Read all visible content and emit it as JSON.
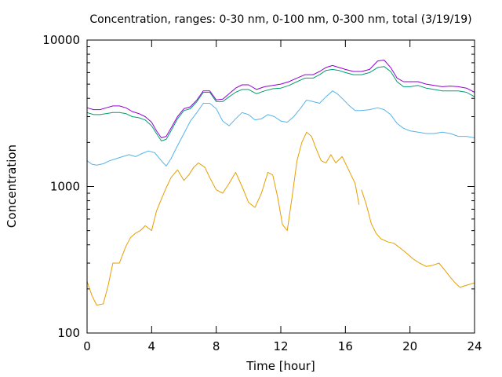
{
  "chart_data": {
    "type": "line",
    "title": "Concentration, ranges: 0-30 nm, 0-100 nm, 0-300 nm, total (3/19/19)",
    "xlabel": "Time [hour]",
    "ylabel": "Concentration",
    "xlim": [
      0,
      24
    ],
    "ylim": [
      100,
      10000
    ],
    "yscale": "log",
    "grid": false,
    "legend": "none",
    "x_ticks": [
      0,
      4,
      8,
      12,
      16,
      20,
      24
    ],
    "x_tick_labels": [
      "0",
      "4",
      "8",
      "12",
      "16",
      "20",
      "24"
    ],
    "y_ticks": [
      100,
      1000,
      10000
    ],
    "y_tick_labels": [
      "100",
      "1000",
      "10000"
    ],
    "series": [
      {
        "color": "#e69f00",
        "x": [
          0,
          0.3,
          0.6,
          1.0,
          1.3,
          1.6,
          2.0,
          2.4,
          2.7,
          3.0,
          3.3,
          3.6,
          4.0,
          4.3,
          4.6,
          4.9,
          5.2,
          5.6,
          6.0,
          6.3,
          6.6,
          6.9,
          7.3,
          7.6,
          8.0,
          8.4,
          8.8,
          9.2,
          9.6,
          10.0,
          10.4,
          10.8,
          11.2,
          11.5,
          11.8,
          12.1,
          12.4,
          12.7,
          13.0,
          13.3,
          13.6,
          13.9,
          14.2,
          14.5,
          14.8,
          15.1,
          15.4,
          15.8,
          16.2,
          16.6,
          16.85
        ],
        "values": [
          225,
          180,
          155,
          158,
          210,
          300,
          300,
          390,
          450,
          480,
          500,
          540,
          500,
          680,
          820,
          980,
          1150,
          1300,
          1100,
          1200,
          1350,
          1450,
          1350,
          1150,
          950,
          900,
          1050,
          1250,
          1000,
          780,
          720,
          900,
          1250,
          1200,
          850,
          550,
          500,
          850,
          1500,
          2000,
          2350,
          2200,
          1800,
          1500,
          1450,
          1650,
          1450,
          1600,
          1300,
          1050,
          750
        ]
      },
      {
        "color": "#e69f00",
        "x": [
          17.0,
          17.3,
          17.6,
          17.9,
          18.2,
          18.6,
          19.0,
          19.4,
          19.8,
          20.2,
          20.6,
          21.0,
          21.4,
          21.8,
          22.2,
          22.5,
          22.8,
          23.1,
          23.4,
          23.7,
          24.0
        ],
        "values": [
          950,
          750,
          560,
          480,
          440,
          420,
          410,
          380,
          350,
          320,
          300,
          285,
          290,
          300,
          265,
          240,
          220,
          205,
          210,
          215,
          220
        ]
      },
      {
        "color": "#56b4e9",
        "x": [
          0,
          0.3,
          0.6,
          1.0,
          1.4,
          1.8,
          2.2,
          2.6,
          3.0,
          3.4,
          3.8,
          4.2,
          4.6,
          4.9,
          5.2,
          5.6,
          6.0,
          6.4,
          6.8,
          7.2,
          7.6,
          8.0,
          8.4,
          8.8,
          9.2,
          9.6,
          10.0,
          10.4,
          10.8,
          11.2,
          11.6,
          12.0,
          12.4,
          12.8,
          13.2,
          13.6,
          14.0,
          14.4,
          14.8,
          15.2,
          15.5,
          15.8,
          16.2,
          16.6,
          17.0,
          17.5,
          18.0,
          18.4,
          18.8,
          19.2,
          19.6,
          20.0,
          20.5,
          21.0,
          21.5,
          22.0,
          22.5,
          23.0,
          23.5,
          24.0
        ],
        "values": [
          1500,
          1420,
          1400,
          1430,
          1500,
          1550,
          1600,
          1650,
          1600,
          1680,
          1750,
          1700,
          1500,
          1380,
          1550,
          1900,
          2300,
          2800,
          3200,
          3700,
          3700,
          3400,
          2800,
          2600,
          2900,
          3200,
          3100,
          2850,
          2900,
          3100,
          3000,
          2800,
          2750,
          3000,
          3400,
          3900,
          3800,
          3700,
          4100,
          4500,
          4300,
          4000,
          3600,
          3300,
          3300,
          3350,
          3450,
          3350,
          3100,
          2700,
          2500,
          2400,
          2350,
          2300,
          2300,
          2350,
          2300,
          2200,
          2200,
          2150
        ]
      },
      {
        "color": "#009e73",
        "x": [
          0,
          0.4,
          0.8,
          1.2,
          1.6,
          2.0,
          2.4,
          2.8,
          3.2,
          3.6,
          4.0,
          4.3,
          4.6,
          4.9,
          5.2,
          5.6,
          6.0,
          6.4,
          6.8,
          7.2,
          7.6,
          8.0,
          8.4,
          8.8,
          9.2,
          9.6,
          10.0,
          10.5,
          11.0,
          11.5,
          12.0,
          12.5,
          13.0,
          13.5,
          14.0,
          14.4,
          14.8,
          15.2,
          15.6,
          16.0,
          16.5,
          17.0,
          17.5,
          18.0,
          18.4,
          18.8,
          19.2,
          19.6,
          20.0,
          20.5,
          21.0,
          21.5,
          22.0,
          22.5,
          23.0,
          23.5,
          24.0
        ],
        "values": [
          3200,
          3100,
          3100,
          3150,
          3200,
          3200,
          3150,
          3000,
          2950,
          2850,
          2600,
          2300,
          2050,
          2100,
          2400,
          2900,
          3300,
          3400,
          3800,
          4400,
          4400,
          3800,
          3800,
          4100,
          4400,
          4600,
          4600,
          4300,
          4500,
          4650,
          4700,
          4900,
          5200,
          5500,
          5500,
          5800,
          6200,
          6300,
          6200,
          6000,
          5800,
          5800,
          6000,
          6500,
          6600,
          6100,
          5200,
          4800,
          4800,
          4900,
          4700,
          4600,
          4500,
          4500,
          4500,
          4400,
          4100
        ]
      },
      {
        "color": "#9400d3",
        "x": [
          0,
          0.4,
          0.8,
          1.2,
          1.6,
          2.0,
          2.4,
          2.8,
          3.2,
          3.6,
          4.0,
          4.3,
          4.6,
          4.9,
          5.2,
          5.6,
          6.0,
          6.4,
          6.8,
          7.2,
          7.6,
          8.0,
          8.4,
          8.8,
          9.2,
          9.6,
          10.0,
          10.5,
          11.0,
          11.5,
          12.0,
          12.5,
          13.0,
          13.5,
          14.0,
          14.4,
          14.8,
          15.2,
          15.6,
          16.0,
          16.5,
          17.0,
          17.5,
          18.0,
          18.4,
          18.8,
          19.2,
          19.6,
          20.0,
          20.5,
          21.0,
          21.5,
          22.0,
          22.5,
          23.0,
          23.5,
          24.0
        ],
        "values": [
          3450,
          3350,
          3350,
          3450,
          3550,
          3550,
          3450,
          3250,
          3150,
          3000,
          2750,
          2400,
          2150,
          2200,
          2500,
          3000,
          3400,
          3500,
          3900,
          4500,
          4500,
          3900,
          3950,
          4300,
          4700,
          4950,
          4950,
          4600,
          4800,
          4900,
          5000,
          5200,
          5500,
          5800,
          5800,
          6100,
          6500,
          6700,
          6500,
          6300,
          6100,
          6100,
          6300,
          7200,
          7300,
          6500,
          5500,
          5200,
          5200,
          5200,
          5000,
          4900,
          4800,
          4850,
          4800,
          4700,
          4400
        ]
      }
    ]
  }
}
